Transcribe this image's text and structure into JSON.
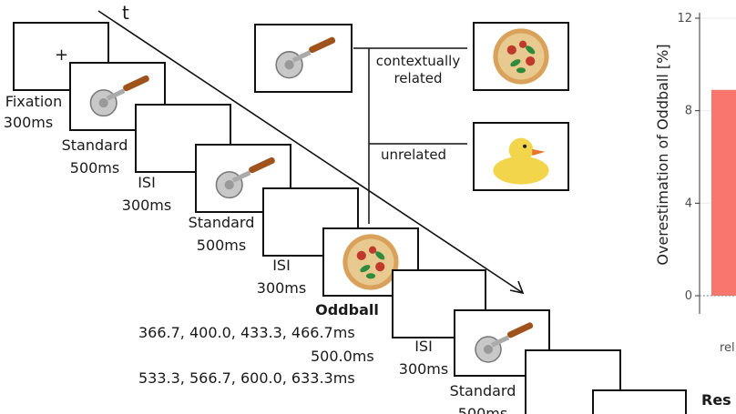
{
  "time_axis_label": "t",
  "fixation_symbol": "+",
  "trial_sequence": [
    {
      "label": "Fixation",
      "duration": "300ms"
    },
    {
      "label": "Standard",
      "duration": "500ms"
    },
    {
      "label": "ISI",
      "duration": "300ms"
    },
    {
      "label": "Standard",
      "duration": "500ms"
    },
    {
      "label": "ISI",
      "duration": "300ms"
    },
    {
      "label": "Oddball",
      "durations": [
        "366.7, 400.0, 433.3, 466.7ms",
        "500.0ms",
        "533.3, 566.7, 600.0, 633.3ms"
      ]
    },
    {
      "label": "ISI",
      "duration": "300ms"
    },
    {
      "label": "Standard",
      "duration": "500ms"
    }
  ],
  "conditions": [
    {
      "label": "contextually related",
      "line1": "contextually",
      "line2": "related",
      "image": "pizza-icon"
    },
    {
      "label": "unrelated",
      "image": "rubber-duck-icon"
    }
  ],
  "standard_image": "pizza-cutter-icon",
  "oddball_image": "pizza-icon",
  "response_label": "Res",
  "chart_data": {
    "type": "bar",
    "ylabel": "Overestimation of Oddball [%]",
    "yticks": [
      0,
      4,
      8,
      12
    ],
    "ylim": [
      0,
      12
    ],
    "categories": [
      "rel"
    ],
    "values": [
      8.9
    ],
    "colors": {
      "bar": "#f8766d",
      "grid": "#ebebeb",
      "axis": "#333333"
    }
  }
}
